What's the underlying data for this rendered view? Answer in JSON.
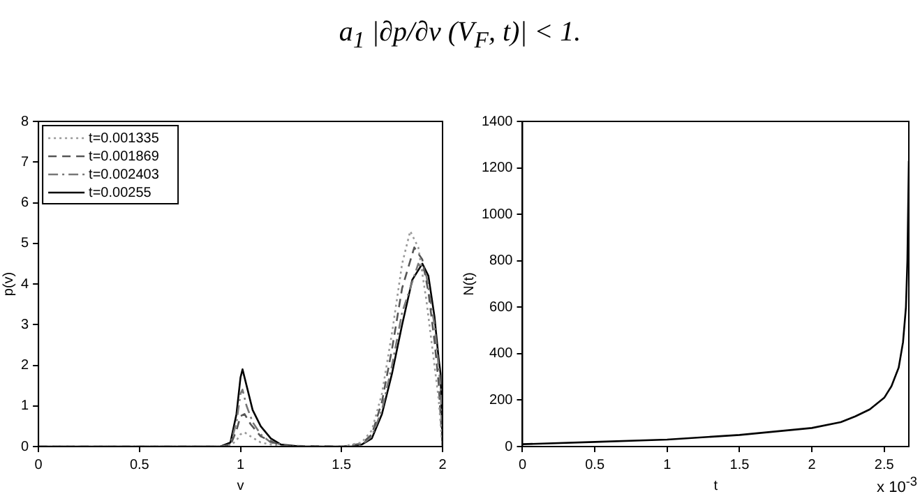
{
  "chart_data": [
    {
      "type": "line",
      "xlabel": "v",
      "ylabel": "p(v)",
      "annotations": [
        "a$_{1}$ |∂p/∂v (V$_{F}$, t)| < 1."
      ],
      "xlim": [
        0,
        2
      ],
      "xticks": [
        0,
        0.5,
        1,
        1.5,
        2
      ],
      "ylim": [
        0,
        8
      ],
      "yticks": [
        0,
        1,
        2,
        3,
        4,
        5,
        6,
        7,
        8
      ],
      "grid": false,
      "legend": "top left",
      "marker": "none",
      "series": [
        {
          "name": "t=0.001335",
          "color": "#999999",
          "line_style": "dotted",
          "x": [
            0,
            0.9,
            0.95,
            0.98,
            1.0,
            1.02,
            1.05,
            1.1,
            1.2,
            1.5,
            1.6,
            1.65,
            1.7,
            1.75,
            1.8,
            1.84,
            1.88,
            1.92,
            1.95,
            1.98,
            2.0
          ],
          "values": [
            0,
            0,
            0.02,
            0.15,
            0.3,
            0.35,
            0.25,
            0.1,
            0,
            0,
            0.1,
            0.4,
            1.3,
            2.8,
            4.5,
            5.3,
            4.9,
            3.6,
            2.4,
            1.2,
            0
          ]
        },
        {
          "name": "t=0.001869",
          "color": "#555555",
          "line_style": "dashed",
          "x": [
            0,
            0.9,
            0.95,
            0.98,
            1.0,
            1.02,
            1.05,
            1.1,
            1.2,
            1.5,
            1.6,
            1.65,
            1.7,
            1.75,
            1.8,
            1.86,
            1.9,
            1.93,
            1.96,
            1.98,
            2.0
          ],
          "values": [
            0,
            0,
            0.03,
            0.4,
            0.75,
            0.8,
            0.55,
            0.25,
            0.02,
            0,
            0.07,
            0.3,
            1.1,
            2.4,
            3.9,
            4.9,
            4.6,
            3.8,
            2.6,
            1.6,
            0
          ]
        },
        {
          "name": "t=0.002403",
          "color": "#777777",
          "line_style": "dashdot",
          "x": [
            0,
            0.9,
            0.95,
            0.98,
            1.0,
            1.01,
            1.03,
            1.06,
            1.1,
            1.15,
            1.25,
            1.55,
            1.6,
            1.65,
            1.7,
            1.75,
            1.8,
            1.88,
            1.92,
            1.96,
            1.99,
            2.0
          ],
          "values": [
            0,
            0,
            0.05,
            0.6,
            1.3,
            1.4,
            1.0,
            0.6,
            0.3,
            0.1,
            0,
            0,
            0.05,
            0.25,
            0.9,
            2.0,
            3.3,
            4.5,
            4.2,
            3.0,
            1.5,
            0
          ]
        },
        {
          "name": "t=0.00255",
          "color": "#000000",
          "line_style": "solid",
          "x": [
            0,
            0.9,
            0.95,
            0.98,
            1.0,
            1.01,
            1.03,
            1.06,
            1.1,
            1.15,
            1.2,
            1.3,
            1.55,
            1.6,
            1.65,
            1.7,
            1.75,
            1.8,
            1.85,
            1.9,
            1.93,
            1.96,
            1.98,
            1.99,
            2.0
          ],
          "values": [
            0,
            0,
            0.1,
            0.8,
            1.7,
            1.9,
            1.5,
            0.9,
            0.5,
            0.2,
            0.05,
            0,
            0,
            0.05,
            0.2,
            0.8,
            1.8,
            3.0,
            4.1,
            4.5,
            4.2,
            3.2,
            2.2,
            1.8,
            0
          ]
        }
      ]
    },
    {
      "type": "line",
      "xlabel": "t",
      "ylabel": "N(t)",
      "annotations": [
        "x 10$^{-3}$"
      ],
      "xlim": [
        0,
        2.67
      ],
      "xticks": [
        0,
        0.5,
        1,
        1.5,
        2,
        2.5
      ],
      "ylim": [
        0,
        1400
      ],
      "yticks": [
        0,
        200,
        400,
        600,
        800,
        1000,
        1200,
        1400
      ],
      "grid": false,
      "marker": "none",
      "line_style": "solid",
      "series": [
        {
          "color": "#000000",
          "x": [
            0,
            0.5,
            1,
            1.5,
            2,
            2.2,
            2.3,
            2.4,
            2.5,
            2.55,
            2.6,
            2.63,
            2.65,
            2.66,
            2.67
          ],
          "values": [
            10,
            20,
            30,
            50,
            80,
            105,
            130,
            160,
            210,
            260,
            340,
            450,
            600,
            800,
            1230
          ]
        }
      ]
    }
  ]
}
